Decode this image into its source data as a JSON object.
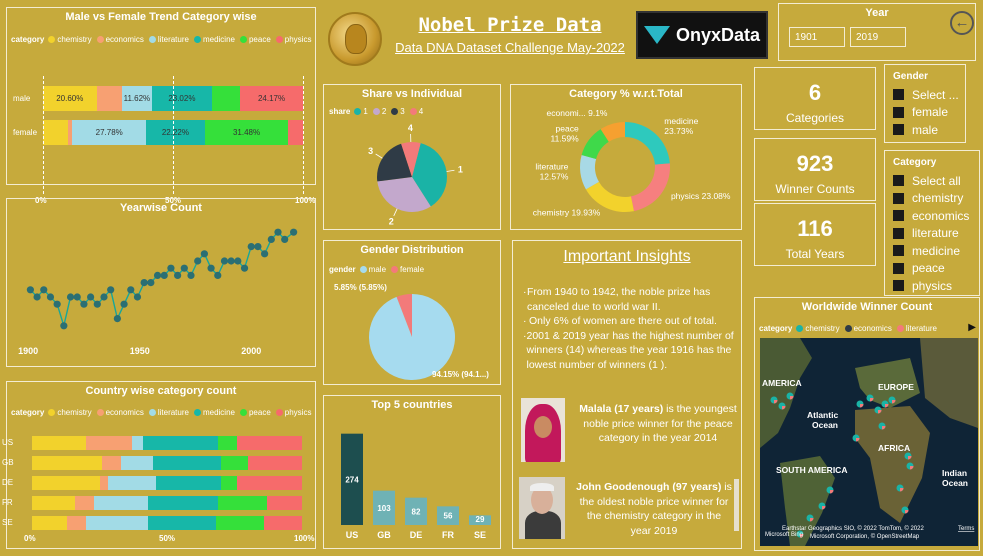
{
  "header": {
    "title": "Nobel Prize Data",
    "subtitle": "Data DNA Dataset Challenge May-2022",
    "logo_text": "OnyxData"
  },
  "year_slicer": {
    "title": "Year",
    "from": "1901",
    "to": "2019"
  },
  "legend_label": "category",
  "categories": [
    {
      "name": "chemistry",
      "color": "#f2d22c"
    },
    {
      "name": "economics",
      "color": "#f7a072"
    },
    {
      "name": "literature",
      "color": "#a2dbe6"
    },
    {
      "name": "medicine",
      "color": "#17b7a8"
    },
    {
      "name": "peace",
      "color": "#35e03a"
    },
    {
      "name": "physics",
      "color": "#f66b6b"
    }
  ],
  "axis_pct": [
    "0%",
    "50%",
    "100%"
  ],
  "gender_trend": {
    "title": "Male vs Female Trend Category wise",
    "chart_data": {
      "type": "bar",
      "stacked": true,
      "orientation": "horizontal",
      "categories": [
        "male",
        "female"
      ],
      "series": [
        {
          "name": "chemistry",
          "values": [
            20.6,
            9.26
          ]
        },
        {
          "name": "economics",
          "values": [
            9.7,
            1.85
          ]
        },
        {
          "name": "literature",
          "values": [
            11.62,
            27.78
          ]
        },
        {
          "name": "medicine",
          "values": [
            23.02,
            22.22
          ]
        },
        {
          "name": "peace",
          "values": [
            10.89,
            31.48
          ]
        },
        {
          "name": "physics",
          "values": [
            24.17,
            5.56
          ]
        }
      ],
      "data_labels": [
        [
          "20.60%",
          "",
          "11.62%",
          "23.02%",
          "",
          "24.17%"
        ],
        [
          "",
          "",
          "27.78%",
          "22.22%",
          "31.48%",
          ""
        ]
      ]
    }
  },
  "yearwise": {
    "title": "Yearwise Count",
    "x_ticks": [
      "1900",
      "1950",
      "2000"
    ],
    "chart_data": {
      "type": "line",
      "x": [
        1901,
        1904,
        1907,
        1910,
        1913,
        1916,
        1919,
        1922,
        1925,
        1928,
        1931,
        1934,
        1937,
        1940,
        1943,
        1946,
        1949,
        1952,
        1955,
        1958,
        1961,
        1964,
        1967,
        1970,
        1973,
        1976,
        1979,
        1982,
        1985,
        1988,
        1991,
        1994,
        1997,
        2000,
        2003,
        2006,
        2009,
        2012,
        2015,
        2019
      ],
      "y": [
        6,
        5,
        6,
        5,
        4,
        1,
        5,
        5,
        4,
        5,
        4,
        5,
        6,
        2,
        4,
        6,
        5,
        7,
        7,
        8,
        8,
        9,
        8,
        9,
        8,
        10,
        11,
        9,
        8,
        10,
        10,
        10,
        9,
        12,
        12,
        11,
        13,
        14,
        13,
        14
      ]
    }
  },
  "country_count": {
    "title": "Country wise category count",
    "chart_data": {
      "type": "bar",
      "stacked": true,
      "orientation": "horizontal",
      "categories": [
        "US",
        "GB",
        "DE",
        "FR",
        "SE"
      ],
      "series": [
        {
          "name": "chemistry",
          "values": [
            20,
            26,
            25,
            16,
            13
          ]
        },
        {
          "name": "economics",
          "values": [
            17,
            7,
            3,
            7,
            7
          ]
        },
        {
          "name": "literature",
          "values": [
            4,
            12,
            18,
            20,
            23
          ]
        },
        {
          "name": "medicine",
          "values": [
            28,
            25,
            24,
            26,
            25
          ]
        },
        {
          "name": "peace",
          "values": [
            7,
            10,
            6,
            18,
            18
          ]
        },
        {
          "name": "physics",
          "values": [
            24,
            20,
            24,
            13,
            14
          ]
        }
      ]
    }
  },
  "share": {
    "title": "Share vs Individual",
    "legend_label": "share",
    "items": [
      {
        "label": "1",
        "value": 37,
        "color": "#1ab3a6"
      },
      {
        "label": "2",
        "value": 32,
        "color": "#c3a8cc"
      },
      {
        "label": "3",
        "value": 22,
        "color": "#2f3b46"
      },
      {
        "label": "4",
        "value": 9,
        "color": "#f37a7a"
      }
    ]
  },
  "category_pct": {
    "title": "Category % w.r.t.Total",
    "chart_data": {
      "type": "pie",
      "donut": true,
      "labels": [
        "medicine",
        "physics",
        "chemistry",
        "literature",
        "peace",
        "economi..."
      ],
      "values": [
        23.73,
        23.08,
        19.93,
        12.57,
        11.59,
        9.1
      ],
      "data_labels": [
        "medicine\n23.73%",
        "physics 23.08%",
        "chemistry 19.93%",
        "literature\n12.57%",
        "peace\n11.59%",
        "economi... 9.1%"
      ],
      "colors": [
        "#2ec9bd",
        "#f67f7f",
        "#f2d22c",
        "#a8d9e6",
        "#3fd94a",
        "#f6a030"
      ]
    }
  },
  "gender_dist": {
    "title": "Gender Distribution",
    "legend_label": "gender",
    "legend": [
      {
        "name": "male",
        "color": "#a6dbef"
      },
      {
        "name": "female",
        "color": "#f37a7a"
      }
    ],
    "chart_data": {
      "type": "pie",
      "labels": [
        "male",
        "female"
      ],
      "values": [
        94.15,
        5.85
      ],
      "data_labels": [
        "94.15% (94.1...)",
        "5.85% (5.85%)"
      ]
    }
  },
  "top5": {
    "title": "Top 5 countries",
    "chart_data": {
      "type": "bar",
      "categories": [
        "US",
        "GB",
        "DE",
        "FR",
        "SE"
      ],
      "values": [
        274,
        103,
        82,
        56,
        29
      ]
    }
  },
  "insights": {
    "title": "Important Insights",
    "bullets": [
      "From 1940 to  1942, the noble prize has canceled due to world war II.",
      "Only 6% of women are there out of total.",
      "2001 & 2019 year has the highest number of winners (14) whereas the year 1916  has the lowest number of winners (1 )."
    ],
    "person1_name": "Malala (17 years)",
    "person1_text1": " is the youngest",
    "person1_text2": "noble price winner for the peace",
    "person1_text3": "category in the year 2014",
    "person2_name": "John Goodenough (97 years)",
    "person2_text1": " is",
    "person2_text2": "the oldest  noble price winner for",
    "person2_text3": "the chemistry category in the",
    "person2_text4": "year 2019"
  },
  "kpis": [
    {
      "value": "6",
      "label": "Categories"
    },
    {
      "value": "923",
      "label": "Winner Counts"
    },
    {
      "value": "116",
      "label": "Total Years"
    }
  ],
  "gender_slicer": {
    "title": "Gender",
    "options": [
      "Select ...",
      "female",
      "male"
    ]
  },
  "category_slicer": {
    "title": "Category",
    "options": [
      "Select all",
      "chemistry",
      "economics",
      "literature",
      "medicine",
      "peace",
      "physics"
    ]
  },
  "map": {
    "title": "Worldwide Winner Count",
    "legend_label": "category",
    "legend": [
      {
        "name": "chemistry",
        "color": "#1ab3a6"
      },
      {
        "name": "economics",
        "color": "#2f3b46"
      },
      {
        "name": "literature",
        "color": "#f37a7a"
      }
    ],
    "labels": [
      "AMERICA",
      "EUROPE",
      "Atlantic",
      "Ocean",
      "AFRICA",
      "SOUTH AMERICA",
      "Indian",
      "Ocean"
    ],
    "attribution": "Earthstar Geographics SIO, © 2022 TomTom, © 2022",
    "attribution2": "Microsoft Corporation, © OpenStreetMap",
    "terms": "Terms",
    "bing": "Microsoft Bing"
  }
}
